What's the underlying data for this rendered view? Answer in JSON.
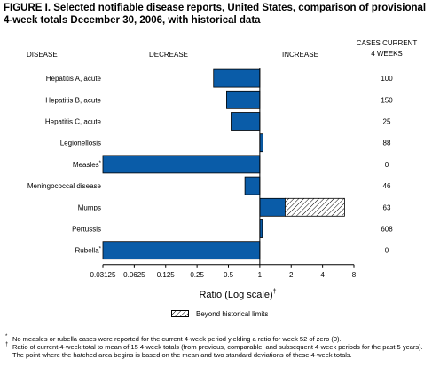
{
  "title": "FIGURE I. Selected notifiable disease reports, United States, comparison of provisional 4-week totals December 30, 2006, with historical data",
  "headers": {
    "disease": "DISEASE",
    "decrease": "DECREASE",
    "increase": "INCREASE",
    "cases_line1": "CASES CURRENT",
    "cases_line2": "4 WEEKS"
  },
  "xlabel": "Ratio (Log scale)",
  "xlabel_mark": "†",
  "legend_label": "Beyond historical limits",
  "footnotes": [
    {
      "mark": "*",
      "text": "No measles or rubella cases were reported for the current 4-week period yielding a ratio for week 52 of zero (0)."
    },
    {
      "mark": "†",
      "text": "Ratio of current 4-week total to mean of 15 4-week totals (from previous, comparable, and subsequent 4-week periods for the past 5 years). The point where the hatched area begins is based on the mean and two standard deviations of these 4-week totals."
    }
  ],
  "chart_data": {
    "type": "bar",
    "orientation": "horizontal",
    "x_scale": "log2",
    "xlim": [
      0.03125,
      8
    ],
    "reference_line": 1,
    "xticks": [
      0.03125,
      0.0625,
      0.125,
      0.25,
      0.5,
      1,
      2,
      4,
      8
    ],
    "xtick_labels": [
      "0.03125",
      "0.0625",
      "0.125",
      "0.25",
      "0.5",
      "1",
      "2",
      "4",
      "8"
    ],
    "colors": {
      "bar": "#0a5ca8",
      "hatch": "#000000"
    },
    "categories": [
      {
        "label": "Hepatitis A, acute",
        "mark": "",
        "ratio": 0.36,
        "cases": "100"
      },
      {
        "label": "Hepatitis B, acute",
        "mark": "",
        "ratio": 0.48,
        "cases": "150"
      },
      {
        "label": "Hepatitis C, acute",
        "mark": "",
        "ratio": 0.53,
        "cases": "25"
      },
      {
        "label": "Legionellosis",
        "mark": "",
        "ratio": 1.07,
        "cases": "88"
      },
      {
        "label": "Measles",
        "mark": "*",
        "ratio": 0.03125,
        "cases": "0"
      },
      {
        "label": "Meningococcal disease",
        "mark": "",
        "ratio": 0.72,
        "cases": "46"
      },
      {
        "label": "Mumps",
        "mark": "",
        "ratio": 6.5,
        "beyond_from": 1.75,
        "cases": "63"
      },
      {
        "label": "Pertussis",
        "mark": "",
        "ratio": 1.06,
        "cases": "608"
      },
      {
        "label": "Rubella",
        "mark": "*",
        "ratio": 0.03125,
        "cases": "0"
      }
    ]
  }
}
